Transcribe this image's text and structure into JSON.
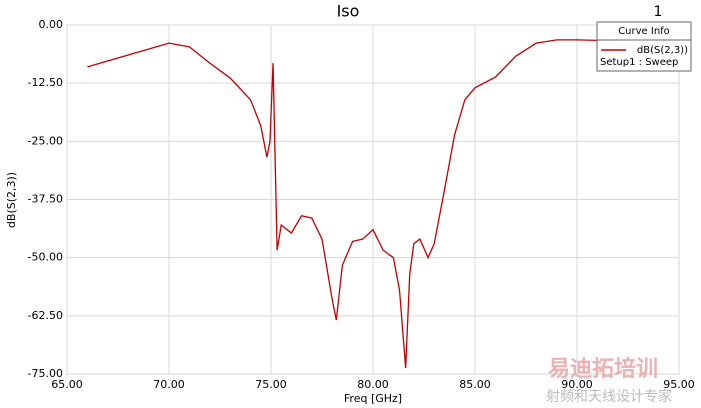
{
  "chart_data": {
    "type": "line",
    "title": "Iso",
    "plot_label": "1",
    "xlabel": "Freq [GHz]",
    "ylabel": "dB(S(2,3))",
    "legend_title": "Curve Info",
    "legend_subtitle": "Setup1 : Sweep",
    "watermark": [
      "易迪拓培训",
      "射频和天线设计专家"
    ],
    "x": [
      66,
      70,
      71,
      72,
      73,
      74,
      74.5,
      74.8,
      74.95,
      75.1,
      75.3,
      75.5,
      76,
      76.5,
      77,
      77.5,
      78,
      78.2,
      78.5,
      79,
      79.5,
      80,
      80.5,
      81,
      81.3,
      81.6,
      81.8,
      82,
      82.3,
      82.7,
      83,
      83.5,
      84,
      84.5,
      85,
      86,
      87,
      88,
      89,
      90,
      91,
      92
    ],
    "series": [
      {
        "name": "dB(S(2,3))",
        "color": "#c00000",
        "values": [
          -9.0,
          -3.9,
          -4.7,
          -8.2,
          -11.4,
          -16.1,
          -21.7,
          -28.4,
          -25.0,
          -8.2,
          -48.4,
          -43.0,
          -44.7,
          -41.0,
          -41.5,
          -46.0,
          -59.0,
          -63.4,
          -51.6,
          -46.5,
          -46.0,
          -44.0,
          -48.4,
          -50.0,
          -57.0,
          -73.7,
          -53.6,
          -47.0,
          -46.0,
          -50.0,
          -47.0,
          -35.5,
          -23.6,
          -16.1,
          -13.5,
          -11.2,
          -6.7,
          -3.9,
          -3.2,
          -3.2,
          -3.3,
          -3.3
        ]
      }
    ],
    "xlim": [
      65,
      95
    ],
    "xticks": [
      {
        "value": 65,
        "label": "65.00"
      },
      {
        "value": 70,
        "label": "70.00"
      },
      {
        "value": 75,
        "label": "75.00"
      },
      {
        "value": 80,
        "label": "80.00"
      },
      {
        "value": 85,
        "label": "85.00"
      },
      {
        "value": 90,
        "label": "90.00"
      },
      {
        "value": 95,
        "label": "95.00"
      }
    ],
    "ylim": [
      -75,
      0
    ],
    "yticks": [
      {
        "value": 0,
        "label": "0.00"
      },
      {
        "value": -12.5,
        "label": "-12.50"
      },
      {
        "value": -25,
        "label": "-25.00"
      },
      {
        "value": -37.5,
        "label": "-37.50"
      },
      {
        "value": -50,
        "label": "-50.00"
      },
      {
        "value": -62.5,
        "label": "-62.50"
      },
      {
        "value": -75,
        "label": "-75.00"
      }
    ],
    "grid": true
  }
}
